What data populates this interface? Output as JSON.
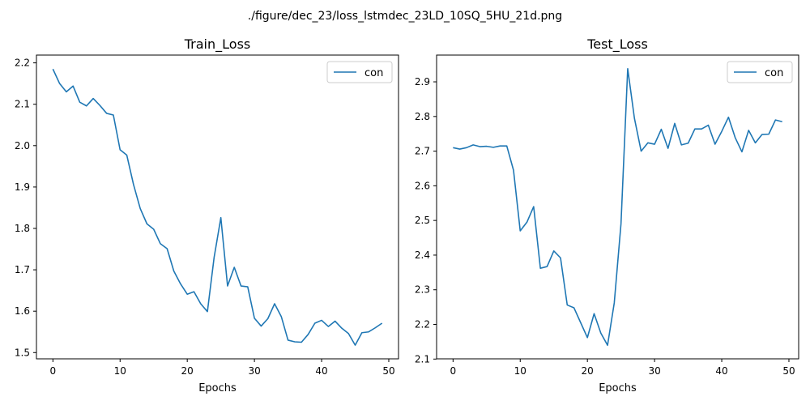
{
  "figure": {
    "suptitle": "./figure/dec_23/loss_lstmdec_23LD_10SQ_5HU_21d.png"
  },
  "colors": {
    "series": "#1f77b4",
    "axes": "#000000",
    "background": "#ffffff"
  },
  "chart_data": [
    {
      "type": "line",
      "title": "Train_Loss",
      "xlabel": "Epochs",
      "ylabel": "",
      "xlim": [
        -2.45,
        51.45
      ],
      "ylim": [
        1.4849,
        2.2188
      ],
      "xticks": [
        0,
        10,
        20,
        30,
        40,
        50
      ],
      "yticks": [
        1.5,
        1.6,
        1.7,
        1.8,
        1.9,
        2.0,
        2.1,
        2.2
      ],
      "ytick_labels": [
        "1.5",
        "1.6",
        "1.7",
        "1.8",
        "1.9",
        "2.0",
        "2.1",
        "2.2"
      ],
      "grid": false,
      "legend": "top-right",
      "series": [
        {
          "name": "con",
          "x": [
            0,
            1,
            2,
            3,
            4,
            5,
            6,
            7,
            8,
            9,
            10,
            11,
            12,
            13,
            14,
            15,
            16,
            17,
            18,
            19,
            20,
            21,
            22,
            23,
            24,
            25,
            26,
            27,
            28,
            29,
            30,
            31,
            32,
            33,
            34,
            35,
            36,
            37,
            38,
            39,
            40,
            41,
            42,
            43,
            44,
            45,
            46,
            47,
            48,
            49
          ],
          "values": [
            2.185,
            2.15,
            2.13,
            2.144,
            2.105,
            2.096,
            2.114,
            2.097,
            2.078,
            2.074,
            1.99,
            1.977,
            1.906,
            1.848,
            1.811,
            1.798,
            1.763,
            1.751,
            1.697,
            1.666,
            1.641,
            1.647,
            1.618,
            1.599,
            1.73,
            1.826,
            1.661,
            1.706,
            1.661,
            1.659,
            1.583,
            1.564,
            1.582,
            1.618,
            1.587,
            1.53,
            1.526,
            1.525,
            1.544,
            1.571,
            1.578,
            1.563,
            1.576,
            1.559,
            1.546,
            1.518,
            1.548,
            1.55,
            1.56,
            1.571
          ]
        }
      ]
    },
    {
      "type": "line",
      "title": "Test_Loss",
      "xlabel": "Epochs",
      "ylabel": "",
      "xlim": [
        -2.45,
        51.45
      ],
      "ylim": [
        2.1007,
        2.9772
      ],
      "xticks": [
        0,
        10,
        20,
        30,
        40,
        50
      ],
      "yticks": [
        2.1,
        2.2,
        2.3,
        2.4,
        2.5,
        2.6,
        2.7,
        2.8,
        2.9
      ],
      "ytick_labels": [
        "2.1",
        "2.2",
        "2.3",
        "2.4",
        "2.5",
        "2.6",
        "2.7",
        "2.8",
        "2.9"
      ],
      "grid": false,
      "legend": "top-right",
      "series": [
        {
          "name": "con",
          "x": [
            0,
            1,
            2,
            3,
            4,
            5,
            6,
            7,
            8,
            9,
            10,
            11,
            12,
            13,
            14,
            15,
            16,
            17,
            18,
            19,
            20,
            21,
            22,
            23,
            24,
            25,
            26,
            27,
            28,
            29,
            30,
            31,
            32,
            33,
            34,
            35,
            36,
            37,
            38,
            39,
            40,
            41,
            42,
            43,
            44,
            45,
            46,
            47,
            48,
            49
          ],
          "values": [
            2.71,
            2.706,
            2.71,
            2.718,
            2.713,
            2.714,
            2.711,
            2.715,
            2.715,
            2.645,
            2.47,
            2.495,
            2.54,
            2.362,
            2.367,
            2.412,
            2.392,
            2.256,
            2.248,
            2.205,
            2.162,
            2.231,
            2.175,
            2.14,
            2.262,
            2.49,
            2.938,
            2.795,
            2.7,
            2.724,
            2.72,
            2.763,
            2.708,
            2.78,
            2.718,
            2.723,
            2.764,
            2.764,
            2.775,
            2.72,
            2.757,
            2.798,
            2.739,
            2.698,
            2.76,
            2.724,
            2.748,
            2.749,
            2.79,
            2.785
          ]
        }
      ]
    }
  ]
}
